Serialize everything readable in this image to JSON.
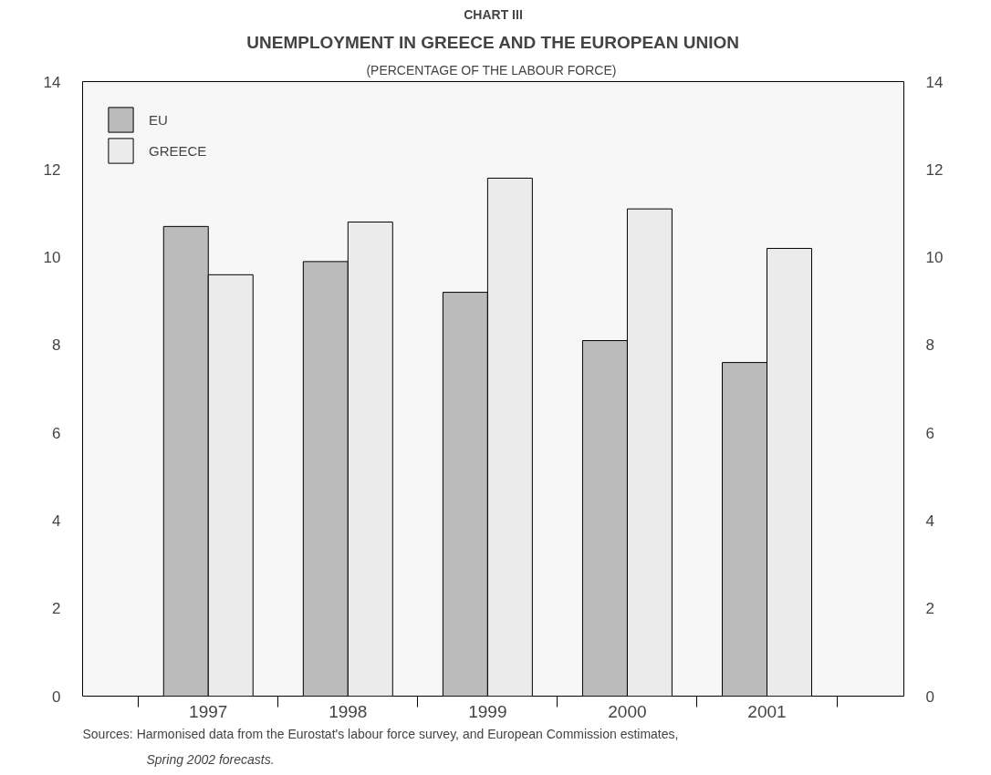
{
  "chart_data": {
    "type": "bar",
    "title": "CHART III",
    "subtitle": "UNEMPLOYMENT IN GREECE AND THE EUROPEAN UNION",
    "annotations": [
      "(PERCENTAGE  OF THE LABOUR FORCE)",
      "Sources: Harmonised data from the Eurostat's labour force survey, and European Commission estimates,",
      "Spring 2002 forecasts."
    ],
    "categories": [
      "1997",
      "1998",
      "1999",
      "2000",
      "2001"
    ],
    "series": [
      {
        "name": "EU",
        "color": "#bbbbbb",
        "values": [
          10.7,
          9.9,
          9.2,
          8.1,
          7.6
        ]
      },
      {
        "name": "GREECE",
        "color": "#ebebeb",
        "values": [
          9.6,
          10.8,
          11.8,
          11.1,
          10.2
        ]
      }
    ],
    "ylim": [
      0,
      14
    ],
    "yticks": [
      0,
      2,
      4,
      6,
      8,
      10,
      12,
      14
    ],
    "y2lim": [
      0,
      14
    ],
    "y2ticks": [
      0,
      2,
      4,
      6,
      8,
      10,
      12,
      14
    ],
    "grid": false,
    "legend": "top left"
  }
}
